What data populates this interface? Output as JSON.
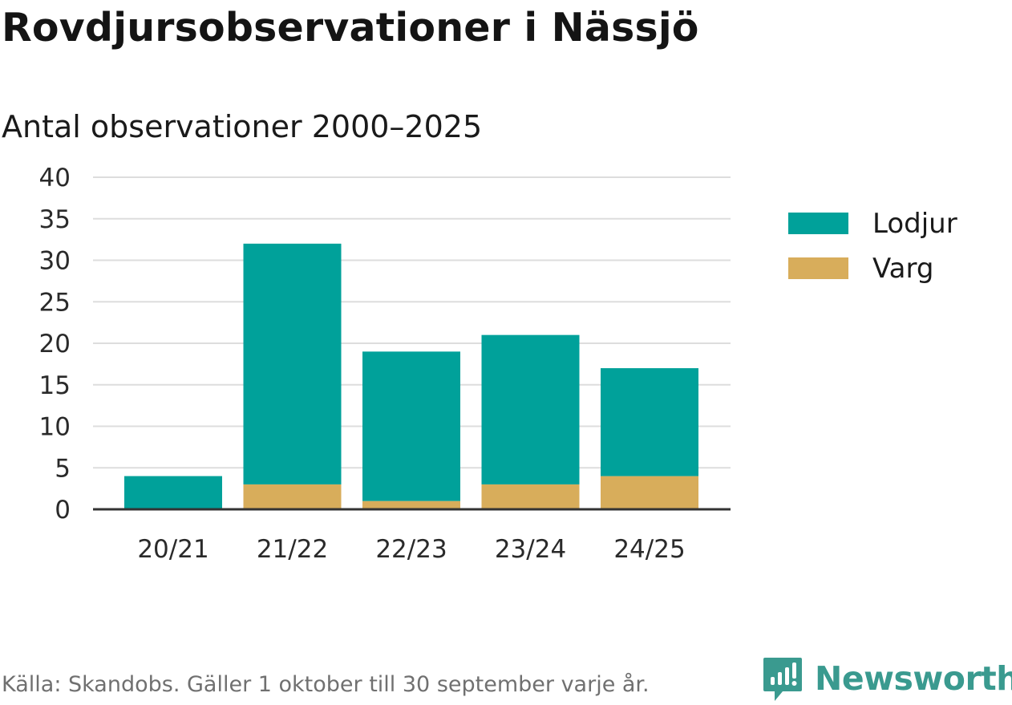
{
  "title": "Rovdjursobservationer i Nässjö",
  "subtitle": "Antal observationer 2000–2025",
  "source": "Källa: Skandobs. Gäller 1 oktober till 30 september varje år.",
  "brand": "Newsworthy",
  "colors": {
    "lodjur": "#00a19a",
    "varg": "#d8ad5b",
    "grid": "#dddddd",
    "axis": "#333333",
    "brand": "#3a9a8f"
  },
  "chart_data": {
    "type": "bar",
    "stacked": true,
    "categories": [
      "20/21",
      "21/22",
      "22/23",
      "23/24",
      "24/25"
    ],
    "series": [
      {
        "name": "Varg",
        "color": "#d8ad5b",
        "values": [
          0,
          3,
          1,
          3,
          4
        ]
      },
      {
        "name": "Lodjur",
        "color": "#00a19a",
        "values": [
          4,
          29,
          18,
          18,
          13
        ]
      }
    ],
    "legend": [
      "Lodjur",
      "Varg"
    ],
    "legend_position": "right",
    "ylim": [
      0,
      40
    ],
    "yticks": [
      0,
      5,
      10,
      15,
      20,
      25,
      30,
      35,
      40
    ],
    "grid": true,
    "xlabel": "",
    "ylabel": ""
  }
}
